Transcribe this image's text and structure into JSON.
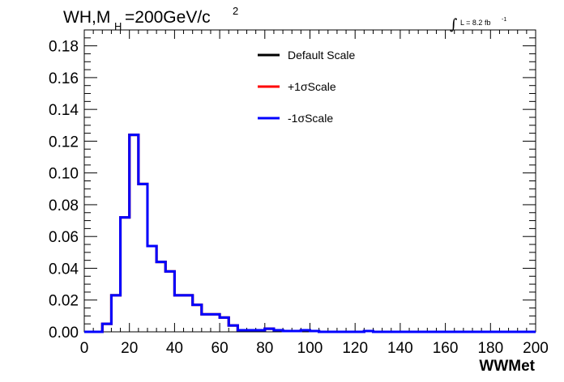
{
  "title": {
    "main": "WH,M",
    "sub": "H",
    "rest": "=200GeV/c",
    "sup": "2"
  },
  "lumi": {
    "integral": "∫",
    "text": "L = 8.2 fb",
    "sup": "-1"
  },
  "chart_data": {
    "type": "line",
    "style": "step-histogram",
    "xlabel": "WWMet",
    "ylabel": "",
    "xlim": [
      0,
      200
    ],
    "ylim": [
      0,
      0.19
    ],
    "xticks": [
      0,
      20,
      40,
      60,
      80,
      100,
      120,
      140,
      160,
      180,
      200
    ],
    "yticks": [
      0,
      0.02,
      0.04,
      0.06,
      0.08,
      0.1,
      0.12,
      0.14,
      0.16,
      0.18
    ],
    "xtick_labels": [
      "0",
      "20",
      "40",
      "60",
      "80",
      "100",
      "120",
      "140",
      "160",
      "180",
      "200"
    ],
    "ytick_labels": [
      "0.00",
      "0.02",
      "0.04",
      "0.06",
      "0.08",
      "0.10",
      "0.12",
      "0.14",
      "0.16",
      "0.18"
    ],
    "bin_edges": [
      0,
      4,
      8,
      12,
      16,
      20,
      24,
      28,
      32,
      36,
      40,
      44,
      48,
      52,
      56,
      60,
      64,
      68,
      72,
      76,
      80,
      84,
      88,
      92,
      96,
      100,
      104,
      108,
      112,
      116,
      120,
      124,
      128,
      132,
      136,
      140,
      144,
      148,
      152,
      156,
      160,
      164,
      168,
      172,
      176,
      180,
      184,
      188,
      192,
      196,
      200
    ],
    "series": [
      {
        "name": "Default Scale",
        "color": "#000000",
        "values": [
          0,
          0,
          0.005,
          0.023,
          0.072,
          0.124,
          0.093,
          0.054,
          0.044,
          0.038,
          0.023,
          0.023,
          0.017,
          0.011,
          0.011,
          0.009,
          0.004,
          0.001,
          0.001,
          0.001,
          0.002,
          0.001,
          0.0005,
          0.0005,
          0.001,
          0.0005,
          0,
          0,
          0,
          0,
          0,
          0.0005,
          0,
          0,
          0,
          0,
          0,
          0,
          0,
          0,
          0,
          0,
          0,
          0,
          0,
          0,
          0,
          0,
          0,
          0
        ]
      },
      {
        "name": "+1σScale",
        "color": "#ff0000",
        "values": [
          0,
          0,
          0.005,
          0.023,
          0.072,
          0.124,
          0.093,
          0.054,
          0.044,
          0.038,
          0.023,
          0.023,
          0.017,
          0.011,
          0.011,
          0.009,
          0.004,
          0.001,
          0.001,
          0.001,
          0.002,
          0.001,
          0.0005,
          0.0005,
          0.001,
          0.0005,
          0,
          0,
          0,
          0,
          0,
          0.0005,
          0,
          0,
          0,
          0,
          0,
          0,
          0,
          0,
          0,
          0,
          0,
          0,
          0,
          0,
          0,
          0,
          0,
          0
        ]
      },
      {
        "name": "-1σScale",
        "color": "#0000ff",
        "values": [
          0,
          0,
          0.005,
          0.023,
          0.072,
          0.124,
          0.093,
          0.054,
          0.044,
          0.038,
          0.023,
          0.023,
          0.017,
          0.011,
          0.011,
          0.009,
          0.004,
          0.001,
          0.001,
          0.001,
          0.002,
          0.001,
          0.0005,
          0.0005,
          0.001,
          0.0005,
          0,
          0,
          0,
          0,
          0,
          0.0005,
          0,
          0,
          0,
          0,
          0,
          0,
          0,
          0,
          0,
          0,
          0,
          0,
          0,
          0,
          0,
          0,
          0,
          0
        ]
      }
    ],
    "legend": {
      "placement": "top-center",
      "border": false
    },
    "grid": false
  }
}
